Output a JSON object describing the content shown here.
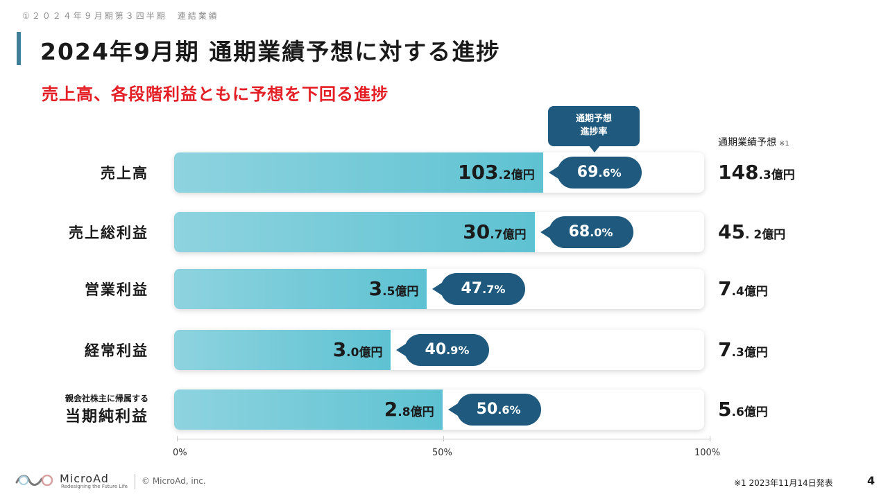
{
  "header": {
    "breadcrumb": "①２０２４年９月期第３四半期　連結業績",
    "title": "2024年9月期 通期業績予想に対する進捗",
    "subtitle": "売上高、各段階利益ともに予想を下回る進捗"
  },
  "callout": {
    "line1": "通期予想",
    "line2": "進捗率"
  },
  "forecast_header": {
    "label": "通期業績予想",
    "note": "※1"
  },
  "chart_data": {
    "type": "bar",
    "orientation": "horizontal",
    "categories": [
      "売上高",
      "売上総利益",
      "営業利益",
      "経常利益",
      "当期純利益"
    ],
    "category_prefix": [
      "",
      "",
      "",
      "",
      "親会社株主に帰属する"
    ],
    "actual": [
      {
        "int": "103",
        "dec": ".2",
        "unit": "億円"
      },
      {
        "int": "30",
        "dec": ".7",
        "unit": "億円"
      },
      {
        "int": "3",
        "dec": ".5",
        "unit": "億円"
      },
      {
        "int": "3",
        "dec": ".0",
        "unit": "億円"
      },
      {
        "int": "2",
        "dec": ".8",
        "unit": "億円"
      }
    ],
    "progress": [
      {
        "int": "69",
        "dec": ".6%"
      },
      {
        "int": "68",
        "dec": ".0%"
      },
      {
        "int": "47",
        "dec": ".7%"
      },
      {
        "int": "40",
        "dec": ".9%"
      },
      {
        "int": "50",
        "dec": ".6%"
      }
    ],
    "values": [
      69.6,
      68.0,
      47.7,
      40.9,
      50.6
    ],
    "forecast": [
      {
        "int": "148",
        "dec": ".3",
        "unit": "億円"
      },
      {
        "int": "45",
        "dec": ". 2",
        "unit": "億円"
      },
      {
        "int": "7",
        "dec": ".4",
        "unit": "億円"
      },
      {
        "int": "7",
        "dec": ".3",
        "unit": "億円"
      },
      {
        "int": "5",
        "dec": ".6",
        "unit": "億円"
      }
    ],
    "xlim": [
      0,
      100
    ],
    "ticks": [
      "0%",
      "50%",
      "100%"
    ],
    "colors": {
      "bar": "#5ec2d2",
      "pill": "#1f5a7e"
    }
  },
  "footer": {
    "logo_text": "MicroAd",
    "logo_tagline": "Redesigning the Future Life",
    "copyright": "© MicroAd, inc.",
    "footnote": "※1 2023年11月14日発表",
    "page_number": "4"
  }
}
